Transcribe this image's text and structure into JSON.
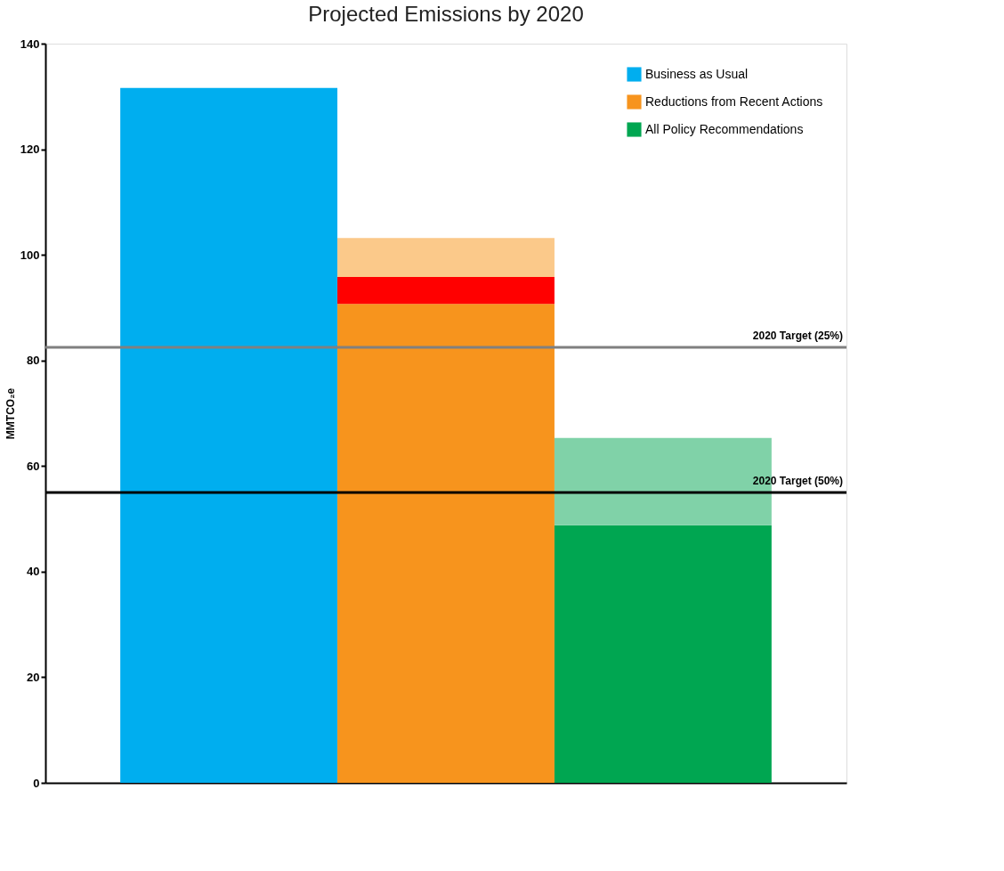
{
  "chart_data": {
    "type": "bar",
    "title": "Projected Emissions by 2020",
    "ylabel": "MMTCO₂e",
    "categories": [
      null,
      null,
      null
    ],
    "stacked": true,
    "series": [
      {
        "name": "Business as Usual",
        "color": "#00aeef",
        "values": [
          131.6,
          null,
          null
        ]
      },
      {
        "name": "Reductions from Recent Actions",
        "color": "#f7941d",
        "values": [
          null,
          90.7,
          null
        ]
      },
      {
        "name": "All Policy Recommendations",
        "color": "#00a651",
        "values": [
          null,
          null,
          48.8
        ]
      },
      {
        "color": "#ff0000",
        "values": [
          null,
          5.1,
          null
        ]
      },
      {
        "color": "#fbc98a",
        "values": [
          null,
          7.4,
          null
        ]
      },
      {
        "color": "#80d2a8",
        "values": [
          null,
          null,
          16.5
        ]
      }
    ],
    "ylim": [
      0,
      140
    ],
    "yticks": [
      0,
      20,
      40,
      60,
      80,
      100,
      120,
      140
    ],
    "tick_labels": "y",
    "grid": false,
    "legend": "top right",
    "ref_lines": [
      {
        "axis": "y",
        "value": 82.5,
        "label": "2020 Target (25%)",
        "color": "#808080"
      },
      {
        "axis": "y",
        "value": 55,
        "label": "2020 Target (50%)",
        "color": "#000000"
      }
    ]
  }
}
